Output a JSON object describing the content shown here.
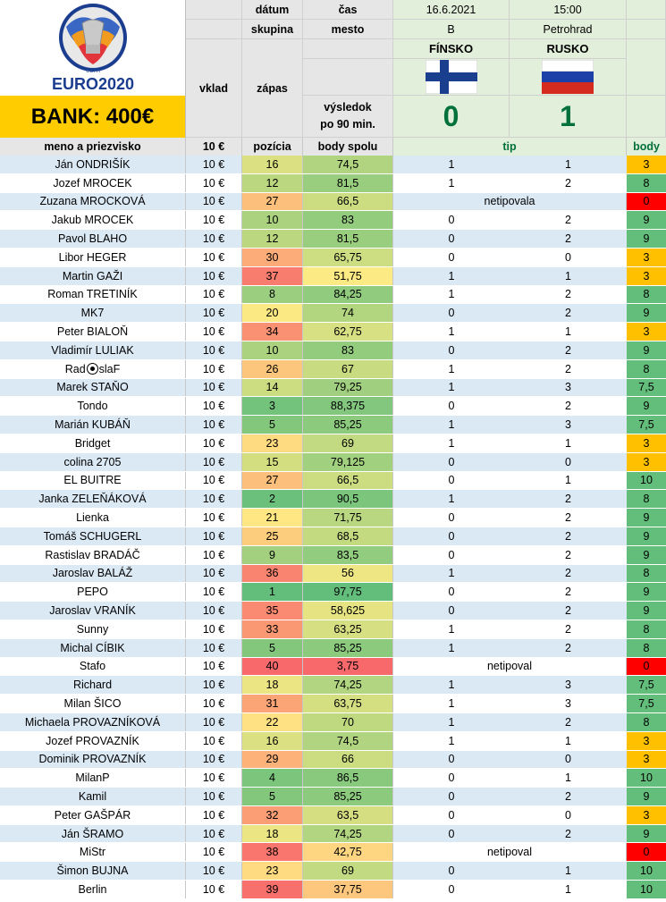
{
  "bank": "BANK: 400€",
  "logo": {
    "uefa": "UEFA",
    "euro": "EURO2020"
  },
  "header": {
    "datum_label": "dátum",
    "cas_label": "čas",
    "datum": "16.6.2021",
    "cas": "15:00",
    "skupina_label": "skupina",
    "mesto_label": "mesto",
    "skupina": "B",
    "mesto": "Petrohrad",
    "vklad_label": "vklad",
    "zapas_label": "zápas",
    "team1": "FÍNSKO",
    "team2": "RUSKO",
    "vysledok_label_1": "výsledok",
    "vysledok_label_2": "po 90 min.",
    "score1": "0",
    "score2": "1"
  },
  "columns": {
    "meno": "meno a priezvisko",
    "vklad": "10 €",
    "pozicia": "pozícia",
    "body_spolu": "body spolu",
    "tip": "tip",
    "body": "body"
  },
  "colors": {
    "pos_best": "#63be7b",
    "pos_mid": "#ffeb84",
    "pos_worst": "#f8696b",
    "body_green": "#63be7b",
    "body_orange": "#ffc000",
    "body_red": "#ff0000",
    "score_green": "#00703c"
  },
  "rows": [
    {
      "name": "Ján ONDRIŠÍK",
      "vklad": "10 €",
      "poz": "16",
      "spolu": "74,5",
      "t1": "1",
      "t2": "1",
      "body": "3"
    },
    {
      "name": "Jozef MROCEK",
      "vklad": "10 €",
      "poz": "12",
      "spolu": "81,5",
      "t1": "1",
      "t2": "2",
      "body": "8"
    },
    {
      "name": "Zuzana MROCKOVÁ",
      "vklad": "10 €",
      "poz": "27",
      "spolu": "66,5",
      "note": "netipovala",
      "body": "0"
    },
    {
      "name": "Jakub MROCEK",
      "vklad": "10 €",
      "poz": "10",
      "spolu": "83",
      "t1": "0",
      "t2": "2",
      "body": "9"
    },
    {
      "name": "Pavol BLAHO",
      "vklad": "10 €",
      "poz": "12",
      "spolu": "81,5",
      "t1": "0",
      "t2": "2",
      "body": "9"
    },
    {
      "name": "Libor HEGER",
      "vklad": "10 €",
      "poz": "30",
      "spolu": "65,75",
      "t1": "0",
      "t2": "0",
      "body": "3"
    },
    {
      "name": "Martin GAŽI",
      "vklad": "10 €",
      "poz": "37",
      "spolu": "51,75",
      "t1": "1",
      "t2": "1",
      "body": "3"
    },
    {
      "name": "Roman TRETINÍK",
      "vklad": "10 €",
      "poz": "8",
      "spolu": "84,25",
      "t1": "1",
      "t2": "2",
      "body": "8"
    },
    {
      "name": "MK7",
      "vklad": "10 €",
      "poz": "20",
      "spolu": "74",
      "t1": "0",
      "t2": "2",
      "body": "9"
    },
    {
      "name": "Peter BIALOŇ",
      "vklad": "10 €",
      "poz": "34",
      "spolu": "62,75",
      "t1": "1",
      "t2": "1",
      "body": "3"
    },
    {
      "name": "Vladimír LULIAK",
      "vklad": "10 €",
      "poz": "10",
      "spolu": "83",
      "t1": "0",
      "t2": "2",
      "body": "9"
    },
    {
      "name": "Rad",
      "name_suffix": "slaF",
      "ball": true,
      "vklad": "10 €",
      "poz": "26",
      "spolu": "67",
      "t1": "1",
      "t2": "2",
      "body": "8"
    },
    {
      "name": "Marek STAŇO",
      "vklad": "10 €",
      "poz": "14",
      "spolu": "79,25",
      "t1": "1",
      "t2": "3",
      "body": "7,5"
    },
    {
      "name": "Tondo",
      "vklad": "10 €",
      "poz": "3",
      "spolu": "88,375",
      "t1": "0",
      "t2": "2",
      "body": "9"
    },
    {
      "name": "Marián KUBÁŇ",
      "vklad": "10 €",
      "poz": "5",
      "spolu": "85,25",
      "t1": "1",
      "t2": "3",
      "body": "7,5"
    },
    {
      "name": "Bridget",
      "vklad": "10 €",
      "poz": "23",
      "spolu": "69",
      "t1": "1",
      "t2": "1",
      "body": "3"
    },
    {
      "name": "colina 2705",
      "vklad": "10 €",
      "poz": "15",
      "spolu": "79,125",
      "t1": "0",
      "t2": "0",
      "body": "3"
    },
    {
      "name": "EL BUITRE",
      "vklad": "10 €",
      "poz": "27",
      "spolu": "66,5",
      "t1": "0",
      "t2": "1",
      "body": "10"
    },
    {
      "name": "Janka ZELEŇÁKOVÁ",
      "vklad": "10 €",
      "poz": "2",
      "spolu": "90,5",
      "t1": "1",
      "t2": "2",
      "body": "8"
    },
    {
      "name": "Lienka",
      "vklad": "10 €",
      "poz": "21",
      "spolu": "71,75",
      "t1": "0",
      "t2": "2",
      "body": "9"
    },
    {
      "name": "Tomáš SCHUGERL",
      "vklad": "10 €",
      "poz": "25",
      "spolu": "68,5",
      "t1": "0",
      "t2": "2",
      "body": "9"
    },
    {
      "name": "Rastislav BRADÁČ",
      "vklad": "10 €",
      "poz": "9",
      "spolu": "83,5",
      "t1": "0",
      "t2": "2",
      "body": "9"
    },
    {
      "name": "Jaroslav BALÁŽ",
      "vklad": "10 €",
      "poz": "36",
      "spolu": "56",
      "t1": "1",
      "t2": "2",
      "body": "8"
    },
    {
      "name": "PEPO",
      "vklad": "10 €",
      "poz": "1",
      "spolu": "97,75",
      "t1": "0",
      "t2": "2",
      "body": "9"
    },
    {
      "name": "Jaroslav VRANÍK",
      "vklad": "10 €",
      "poz": "35",
      "spolu": "58,625",
      "t1": "0",
      "t2": "2",
      "body": "9"
    },
    {
      "name": "Sunny",
      "vklad": "10 €",
      "poz": "33",
      "spolu": "63,25",
      "t1": "1",
      "t2": "2",
      "body": "8"
    },
    {
      "name": "Michal CÍBIK",
      "vklad": "10 €",
      "poz": "5",
      "spolu": "85,25",
      "t1": "1",
      "t2": "2",
      "body": "8"
    },
    {
      "name": "Stafo",
      "vklad": "10 €",
      "poz": "40",
      "spolu": "3,75",
      "note": "netipoval",
      "body": "0"
    },
    {
      "name": "Richard",
      "vklad": "10 €",
      "poz": "18",
      "spolu": "74,25",
      "t1": "1",
      "t2": "3",
      "body": "7,5"
    },
    {
      "name": "Milan ŠICO",
      "vklad": "10 €",
      "poz": "31",
      "spolu": "63,75",
      "t1": "1",
      "t2": "3",
      "body": "7,5"
    },
    {
      "name": "Michaela PROVAZNÍKOVÁ",
      "vklad": "10 €",
      "poz": "22",
      "spolu": "70",
      "t1": "1",
      "t2": "2",
      "body": "8"
    },
    {
      "name": "Jozef PROVAZNÍK",
      "vklad": "10 €",
      "poz": "16",
      "spolu": "74,5",
      "t1": "1",
      "t2": "1",
      "body": "3"
    },
    {
      "name": "Dominik PROVAZNÍK",
      "vklad": "10 €",
      "poz": "29",
      "spolu": "66",
      "t1": "0",
      "t2": "0",
      "body": "3"
    },
    {
      "name": "MilanP",
      "vklad": "10 €",
      "poz": "4",
      "spolu": "86,5",
      "t1": "0",
      "t2": "1",
      "body": "10"
    },
    {
      "name": "Kamil",
      "vklad": "10 €",
      "poz": "5",
      "spolu": "85,25",
      "t1": "0",
      "t2": "2",
      "body": "9"
    },
    {
      "name": "Peter GAŠPÁR",
      "vklad": "10 €",
      "poz": "32",
      "spolu": "63,5",
      "t1": "0",
      "t2": "0",
      "body": "3"
    },
    {
      "name": "Ján ŠRAMO",
      "vklad": "10 €",
      "poz": "18",
      "spolu": "74,25",
      "t1": "0",
      "t2": "2",
      "body": "9"
    },
    {
      "name": "MiStr",
      "vklad": "10 €",
      "poz": "38",
      "spolu": "42,75",
      "note": "netipoval",
      "body": "0"
    },
    {
      "name": "Šimon BUJNA",
      "vklad": "10 €",
      "poz": "23",
      "spolu": "69",
      "t1": "0",
      "t2": "1",
      "body": "10"
    },
    {
      "name": "Berlin",
      "vklad": "10 €",
      "poz": "39",
      "spolu": "37,75",
      "t1": "0",
      "t2": "1",
      "body": "10"
    }
  ]
}
